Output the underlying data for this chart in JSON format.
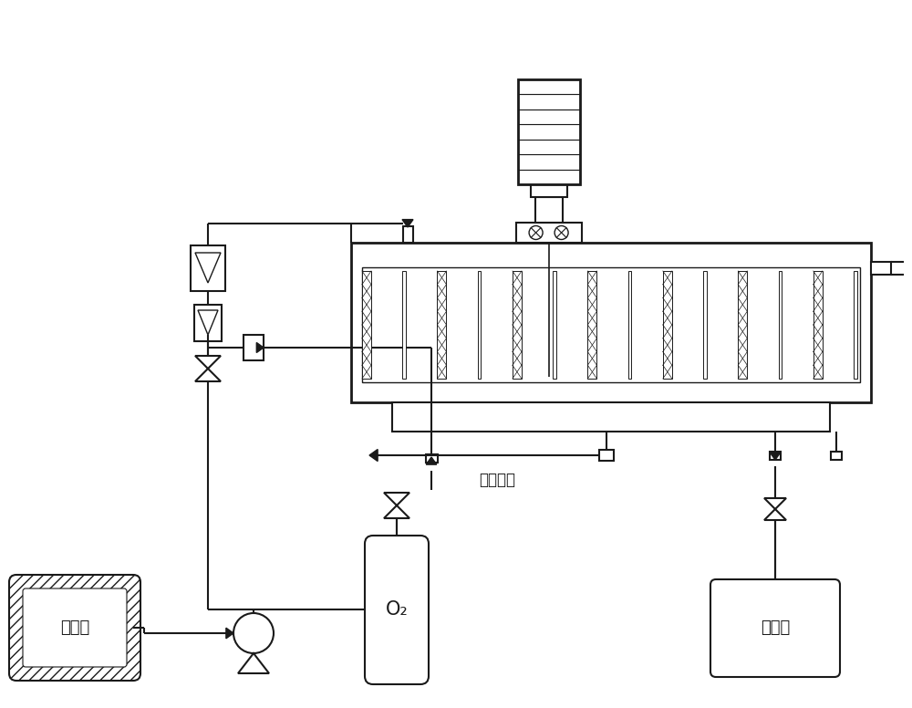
{
  "bg_color": "#ffffff",
  "line_color": "#1a1a1a",
  "lw": 1.5,
  "labels": {
    "raw_tank": "原料罐",
    "product_tank": "产料罐",
    "o2": "O₂",
    "gas_outlet": "气体出口"
  },
  "figsize": [
    10.0,
    7.76
  ],
  "dpi": 100,
  "xlim": [
    0,
    10
  ],
  "ylim": [
    0,
    7.76
  ]
}
